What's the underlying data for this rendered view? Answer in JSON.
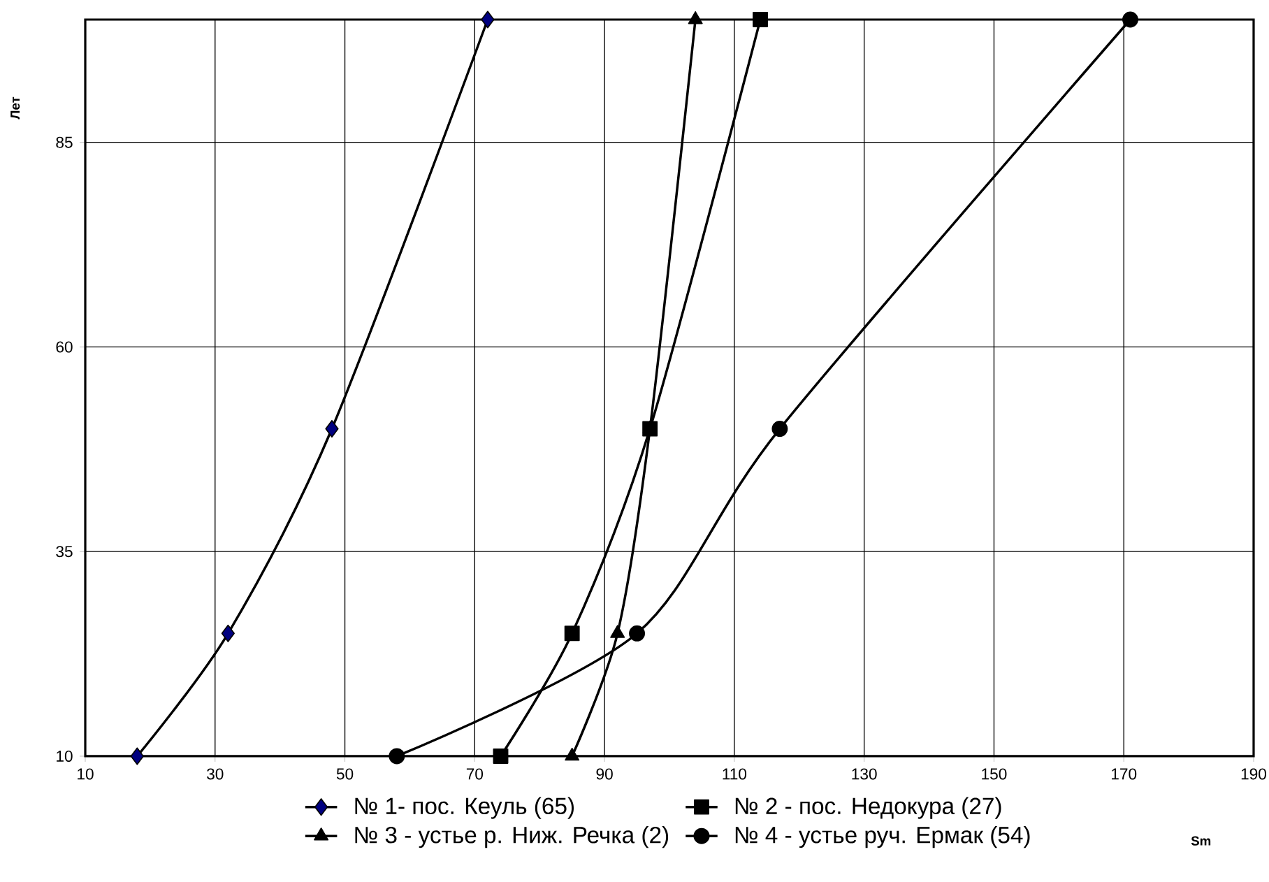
{
  "chart_data": {
    "type": "line",
    "xlabel": "Sm",
    "ylabel": "Лет",
    "xlim": [
      10,
      190
    ],
    "ylim": [
      10,
      100
    ],
    "xticks": [
      10,
      30,
      50,
      70,
      90,
      110,
      130,
      150,
      170,
      190
    ],
    "yticks": [
      10,
      35,
      60,
      85
    ],
    "grid": true,
    "legend": "bottom",
    "line_style": "solid",
    "series": [
      {
        "name": "№ 1- пос. Кеуль (65)",
        "color": "#000080",
        "marker": "diamond",
        "x": [
          18,
          32,
          48,
          72
        ],
        "values": [
          10,
          25,
          50,
          100
        ]
      },
      {
        "name": "№ 2 - пос. Недокура (27)",
        "color": "#000000",
        "marker": "square",
        "x": [
          74,
          85,
          97,
          114
        ],
        "values": [
          10,
          25,
          50,
          100
        ]
      },
      {
        "name": "№ 3 - устье р. Ниж. Речка (2)",
        "color": "#000000",
        "marker": "triangle",
        "x": [
          85,
          92,
          97,
          104
        ],
        "values": [
          10,
          25,
          50,
          100
        ]
      },
      {
        "name": "№ 4 - устье руч. Ермак (54)",
        "color": "#000000",
        "marker": "circle",
        "x": [
          58,
          95,
          117,
          171
        ],
        "values": [
          10,
          25,
          50,
          100
        ]
      }
    ]
  }
}
